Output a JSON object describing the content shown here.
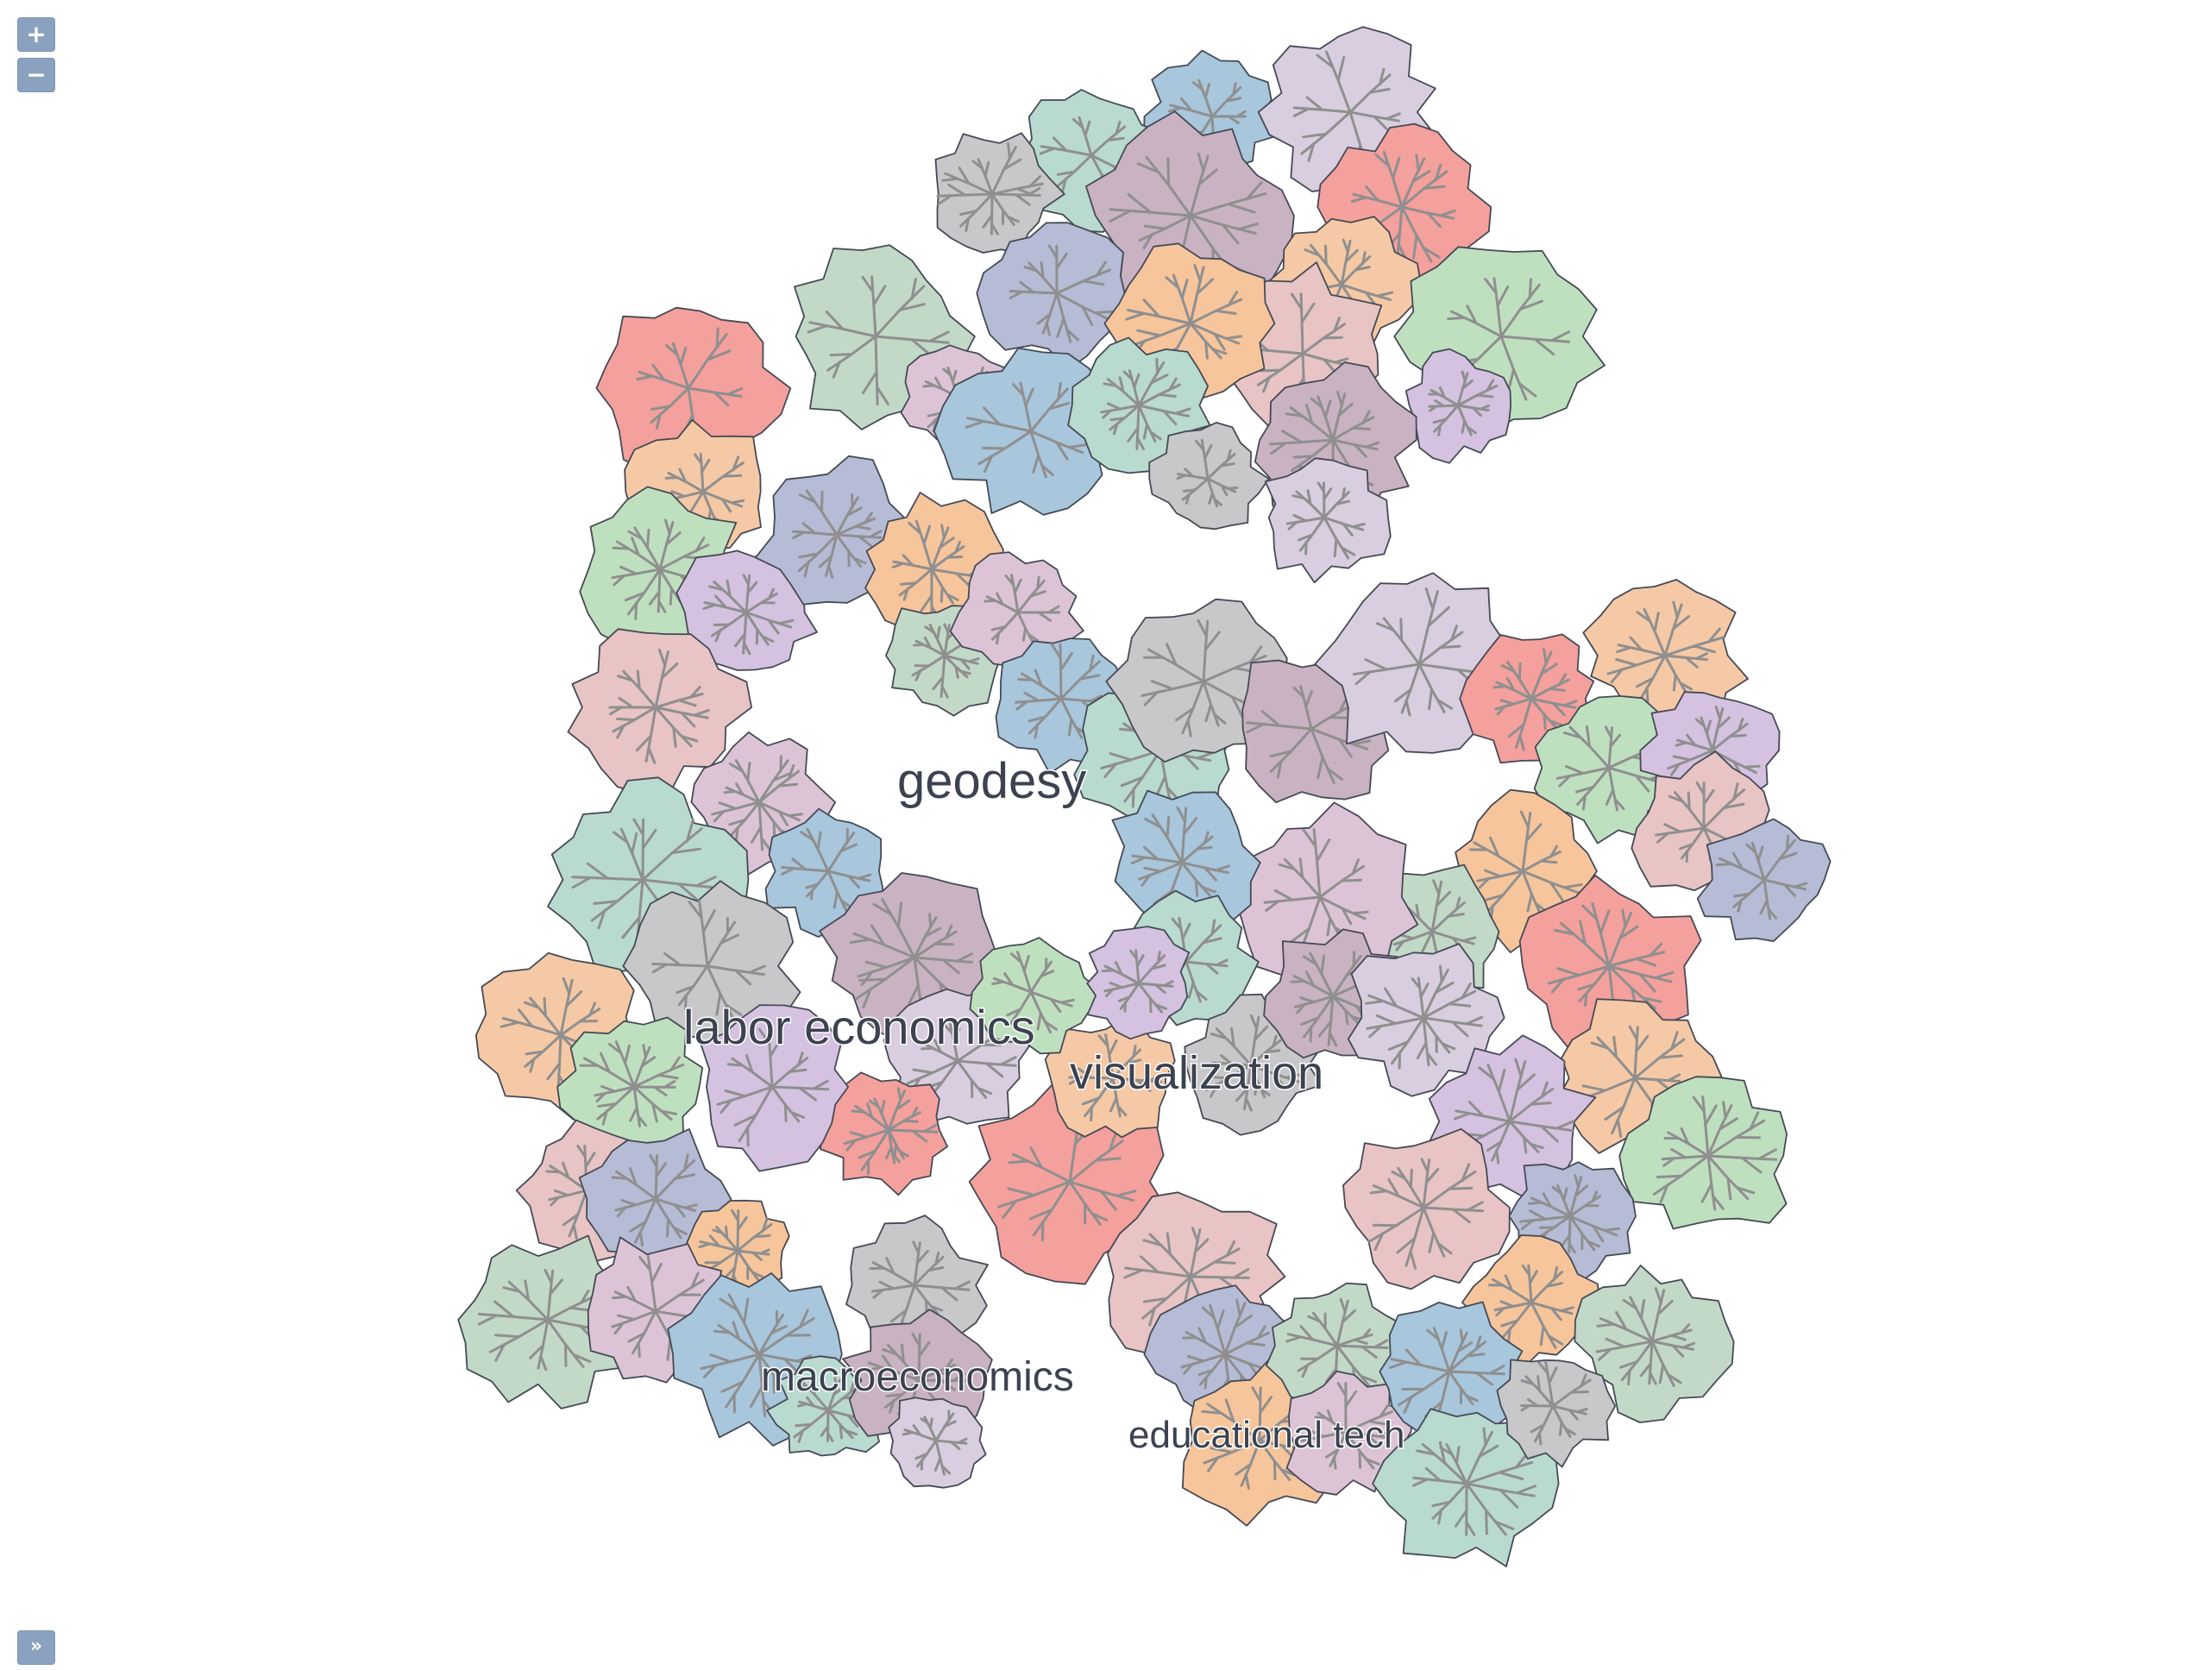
{
  "controls": {
    "zoom_in_label": "+",
    "zoom_out_label": "−",
    "expand_label": "»"
  },
  "map": {
    "background": "#ffffff",
    "palette": [
      "#a8c6dc",
      "#b9dacf",
      "#c8c8ca",
      "#c9b2c2",
      "#d9cde0",
      "#f4a09c",
      "#f5c9a5",
      "#bfe0bf",
      "#d4c2e0",
      "#e8c4c4",
      "#b6bcd6",
      "#f7c59b",
      "#c2d9c7",
      "#dcc4d6"
    ],
    "labels": [
      {
        "text": "geodesy",
        "size": "large"
      },
      {
        "text": "labor economics",
        "size": "large"
      },
      {
        "text": "visualization",
        "size": "large"
      },
      {
        "text": "macroeconomics",
        "size": "medium"
      },
      {
        "text": "educational tech",
        "size": "medium"
      }
    ]
  }
}
